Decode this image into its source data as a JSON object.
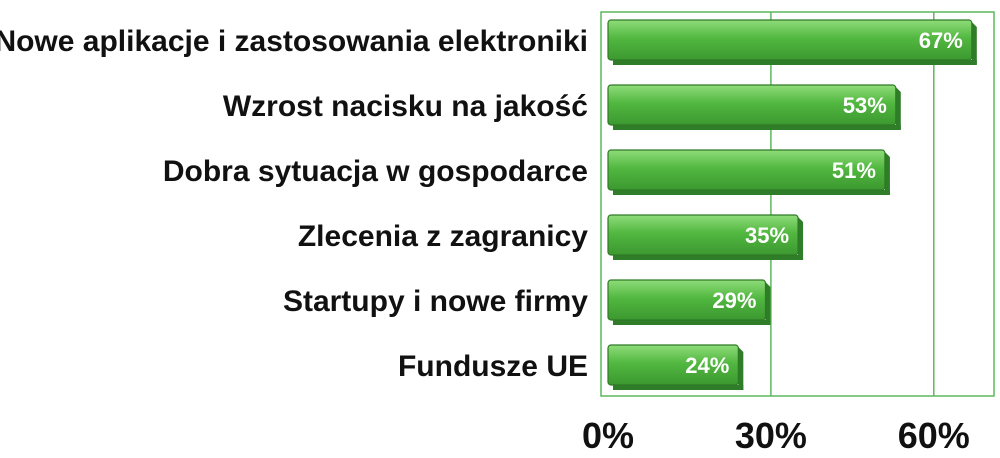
{
  "chart_data": {
    "type": "bar",
    "orientation": "horizontal",
    "categories": [
      "Nowe aplikacje i zastosowania elektroniki",
      "Wzrost nacisku na jakość",
      "Dobra sytuacja w gospodarce",
      "Zlecenia z zagranicy",
      "Startupy i nowe firmy",
      "Fundusze UE"
    ],
    "values": [
      67,
      53,
      51,
      35,
      29,
      24
    ],
    "value_labels": [
      "67%",
      "53%",
      "51%",
      "35%",
      "29%",
      "24%"
    ],
    "x_ticks": [
      0,
      30,
      60
    ],
    "x_tick_labels": [
      "0%",
      "30%",
      "60%"
    ],
    "xlim": [
      0,
      70
    ],
    "grid": "vertical",
    "colors": {
      "bar": "#4caf3c",
      "bar_light": "#7ed36a",
      "bar_dark": "#2f7d28",
      "grid": "#5cb85c"
    }
  }
}
